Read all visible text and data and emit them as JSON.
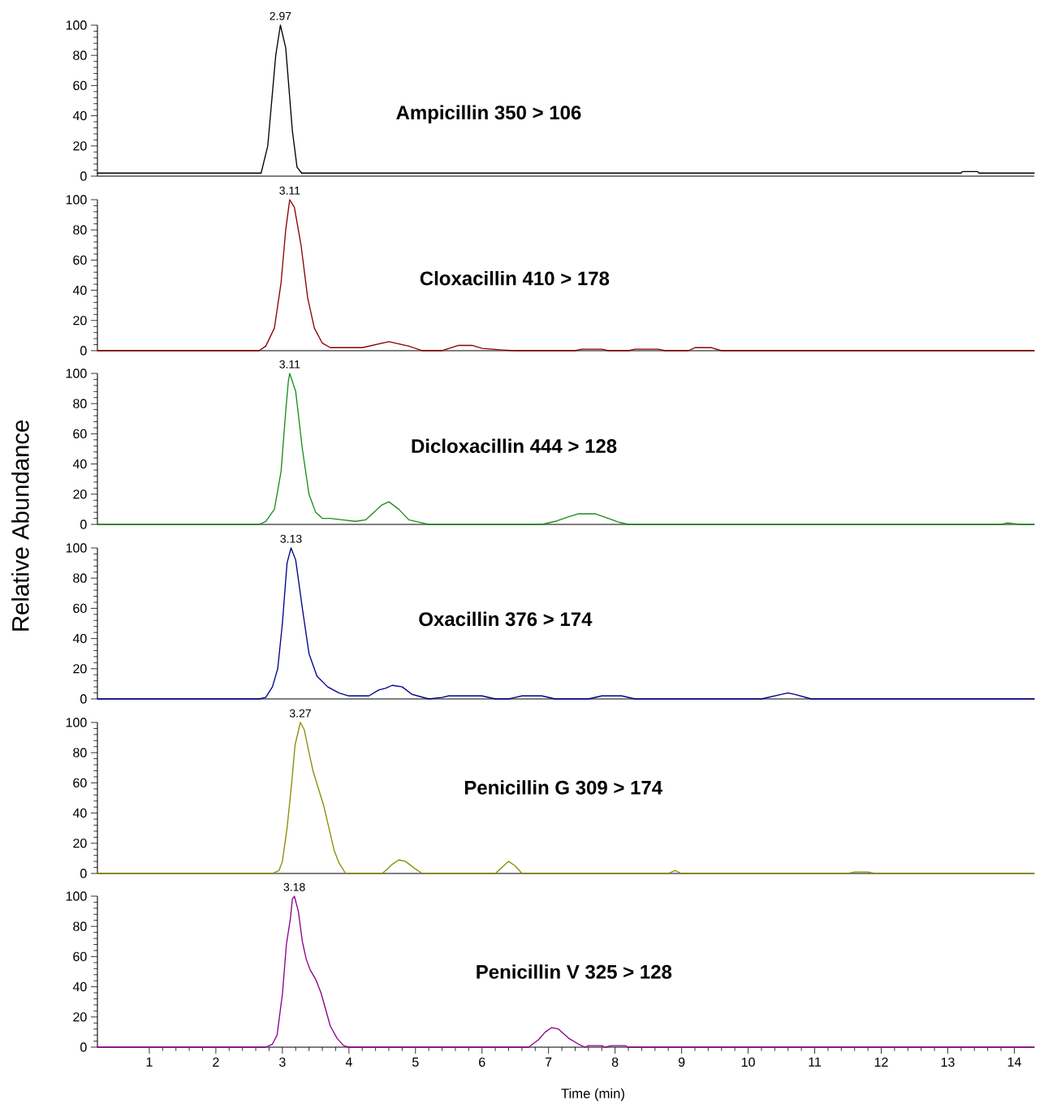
{
  "chart_data": [
    {
      "type": "line",
      "color": "#000000",
      "xlim": [
        0.22,
        14.3
      ],
      "ylim": [
        0,
        100
      ],
      "yticks": [
        0,
        20,
        40,
        60,
        80,
        100
      ],
      "tick_labels": "y",
      "x": [
        0.22,
        2.68,
        2.78,
        2.9,
        2.97,
        3.05,
        3.15,
        3.22,
        3.29,
        13.2,
        13.22,
        13.45,
        13.47,
        14.3
      ],
      "values": [
        2,
        2,
        20,
        80,
        100,
        85,
        30,
        6,
        2,
        2,
        3,
        3,
        2,
        2
      ],
      "annotations": [
        {
          "text": "2.97",
          "x": 2.97,
          "y": 100
        },
        "**Ampicillin  350 > 106**"
      ]
    },
    {
      "type": "line",
      "color": "#8b0000",
      "xlim": [
        0.22,
        14.3
      ],
      "ylim": [
        0,
        100
      ],
      "yticks": [
        0,
        20,
        40,
        60,
        80,
        100
      ],
      "tick_labels": "y",
      "x": [
        0.22,
        2.65,
        2.75,
        2.88,
        2.98,
        3.05,
        3.11,
        3.18,
        3.28,
        3.38,
        3.48,
        3.6,
        3.72,
        4.2,
        4.6,
        4.9,
        5.1,
        5.4,
        5.65,
        5.85,
        6.0,
        6.3,
        6.5,
        7.4,
        7.5,
        7.8,
        7.9,
        8.2,
        8.3,
        8.65,
        8.75,
        9.1,
        9.2,
        9.45,
        9.6,
        14.3
      ],
      "values": [
        0,
        0,
        3,
        15,
        45,
        80,
        100,
        95,
        70,
        35,
        15,
        5,
        2,
        2,
        6,
        3,
        0,
        0,
        3.5,
        3.5,
        1.5,
        0.5,
        0,
        0,
        1,
        1,
        0,
        0,
        1,
        1,
        0,
        0,
        2,
        2,
        0,
        0
      ],
      "annotations": [
        {
          "text": "3.11",
          "x": 3.11,
          "y": 100
        },
        "**Cloxacillin  410 > 178**"
      ]
    },
    {
      "type": "line",
      "color": "#1a8c1a",
      "xlim": [
        0.22,
        14.3
      ],
      "ylim": [
        0,
        100
      ],
      "yticks": [
        0,
        20,
        40,
        60,
        80,
        100
      ],
      "tick_labels": "y",
      "ylabel": "Relative Abundance",
      "x": [
        0.22,
        2.65,
        2.75,
        2.88,
        2.98,
        3.05,
        3.09,
        3.11,
        3.2,
        3.3,
        3.4,
        3.5,
        3.6,
        3.72,
        3.9,
        4.1,
        4.25,
        4.4,
        4.5,
        4.6,
        4.75,
        4.9,
        5.1,
        5.2,
        6.9,
        7.1,
        7.3,
        7.45,
        7.7,
        7.9,
        8.05,
        8.2,
        13.8,
        13.9,
        14.0,
        14.1,
        14.3
      ],
      "values": [
        0,
        0,
        2,
        10,
        35,
        75,
        95,
        100,
        88,
        50,
        20,
        8,
        4,
        4,
        3,
        2,
        3,
        9,
        13,
        15,
        10,
        3,
        1,
        0,
        0,
        2,
        5,
        7,
        7,
        4,
        1.5,
        0,
        0,
        1,
        0.5,
        0,
        0
      ],
      "annotations": [
        {
          "text": "3.11",
          "x": 3.11,
          "y": 100
        },
        "**Dicloxacillin  444 > 128**"
      ]
    },
    {
      "type": "line",
      "color": "#00008b",
      "xlim": [
        0.22,
        14.3
      ],
      "ylim": [
        0,
        100
      ],
      "yticks": [
        0,
        20,
        40,
        60,
        80,
        100
      ],
      "tick_labels": "y",
      "x": [
        0.22,
        2.65,
        2.75,
        2.85,
        2.93,
        3.0,
        3.07,
        3.13,
        3.2,
        3.3,
        3.4,
        3.52,
        3.68,
        3.85,
        4.0,
        4.3,
        4.45,
        4.55,
        4.65,
        4.8,
        4.95,
        5.2,
        5.4,
        5.5,
        6.0,
        6.2,
        6.4,
        6.5,
        6.6,
        6.9,
        7.1,
        7.6,
        7.7,
        7.8,
        8.1,
        8.3,
        10.2,
        10.5,
        10.6,
        10.7,
        10.95,
        14.3
      ],
      "values": [
        0,
        0,
        1,
        8,
        20,
        50,
        90,
        100,
        92,
        60,
        30,
        15,
        8,
        4,
        2,
        2,
        6,
        7,
        9,
        8,
        3,
        0,
        1,
        2,
        2,
        0,
        0,
        1,
        2,
        2,
        0,
        0,
        1,
        2,
        2,
        0,
        0,
        3,
        4,
        3,
        0,
        0
      ],
      "annotations": [
        {
          "text": "3.13",
          "x": 3.13,
          "y": 100
        },
        "**Oxacillin  376 > 174**"
      ]
    },
    {
      "type": "line",
      "color": "#8b8b00",
      "xlim": [
        0.22,
        14.3
      ],
      "ylim": [
        0,
        100
      ],
      "yticks": [
        0,
        20,
        40,
        60,
        80,
        100
      ],
      "tick_labels": "y",
      "x": [
        0.22,
        2.85,
        2.95,
        3.0,
        3.07,
        3.14,
        3.19,
        3.27,
        3.33,
        3.4,
        3.46,
        3.55,
        3.62,
        3.7,
        3.78,
        3.85,
        3.95,
        4.5,
        4.58,
        4.65,
        4.75,
        4.85,
        5.0,
        5.1,
        6.2,
        6.35,
        6.4,
        6.5,
        6.6,
        8.8,
        8.9,
        9.0,
        11.5,
        11.6,
        11.8,
        11.9,
        14.3
      ],
      "values": [
        0,
        0,
        2,
        8,
        30,
        60,
        85,
        100,
        95,
        80,
        68,
        55,
        45,
        30,
        15,
        7,
        0,
        0,
        3,
        6,
        9,
        8,
        3,
        0,
        0,
        6,
        8,
        5,
        0,
        0,
        2,
        0,
        0,
        1,
        1,
        0,
        0
      ],
      "annotations": [
        {
          "text": "3.27",
          "x": 3.27,
          "y": 100
        },
        "**Penicillin G  309 > 174**"
      ]
    },
    {
      "type": "line",
      "color": "#8b008b",
      "xlim": [
        0.22,
        14.3
      ],
      "ylim": [
        0,
        100
      ],
      "yticks": [
        0,
        20,
        40,
        60,
        80,
        100
      ],
      "xticks": [
        1,
        2,
        3,
        4,
        5,
        6,
        7,
        8,
        9,
        10,
        11,
        12,
        13,
        14
      ],
      "xlabel": "Time (min)",
      "x": [
        0.22,
        2.75,
        2.85,
        2.92,
        3.0,
        3.06,
        3.12,
        3.15,
        3.18,
        3.24,
        3.3,
        3.36,
        3.42,
        3.5,
        3.58,
        3.65,
        3.72,
        3.82,
        3.92,
        4.0,
        6.7,
        6.85,
        6.95,
        7.05,
        7.15,
        7.3,
        7.45,
        7.55,
        7.6,
        7.8,
        7.85,
        7.95,
        8.15,
        8.2,
        14.3
      ],
      "values": [
        0,
        0,
        2,
        8,
        35,
        68,
        85,
        98,
        100,
        90,
        70,
        58,
        51,
        45,
        36,
        25,
        14,
        6,
        1,
        0,
        0,
        5,
        10,
        13,
        12,
        6,
        2,
        0,
        1,
        1,
        0,
        1,
        1,
        0,
        0
      ],
      "annotations": [
        {
          "text": "3.18",
          "x": 3.18,
          "y": 100
        },
        "**Penicillin V  325 > 128**"
      ]
    }
  ]
}
